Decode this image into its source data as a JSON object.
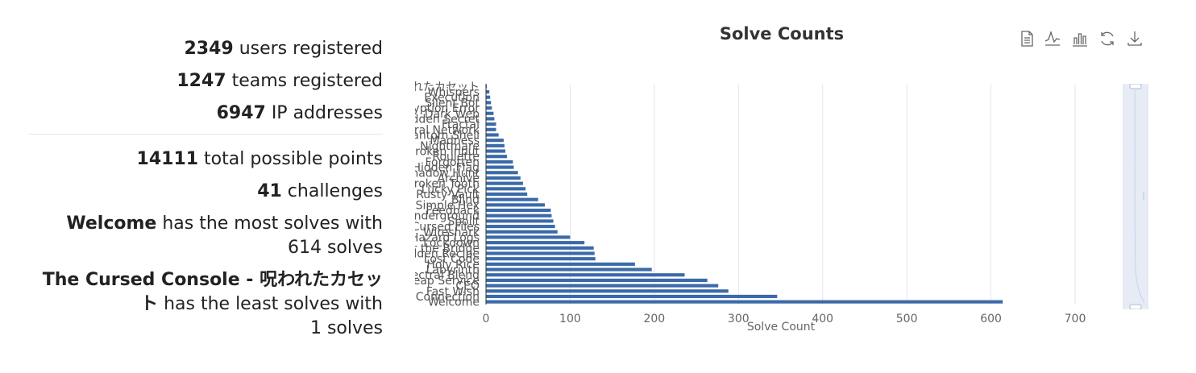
{
  "stats": {
    "users": {
      "value": "2349",
      "label": " users registered"
    },
    "teams": {
      "value": "1247",
      "label": " teams registered"
    },
    "ips": {
      "value": "6947",
      "label": " IP addresses"
    },
    "points": {
      "value": "14111",
      "label": " total possible points"
    },
    "challenges": {
      "value": "41",
      "label": " challenges"
    },
    "most": {
      "name": "Welcome",
      "text": " has the most solves with",
      "count": "614 solves"
    },
    "least": {
      "name": "The Cursed Console - 呪われたカセット",
      "text": " has the least solves with",
      "count": "1 solves"
    }
  },
  "toolbox": {
    "icons": [
      "data-view-icon",
      "line-chart-icon",
      "bar-chart-icon",
      "restore-icon",
      "save-image-icon"
    ]
  },
  "chart_data": {
    "type": "bar",
    "orientation": "horizontal",
    "title": "Solve Counts",
    "xlabel": "Solve Count",
    "xlim": [
      0,
      700
    ],
    "xticks": [
      0,
      100,
      200,
      300,
      400,
      500,
      600,
      700
    ],
    "grid": true,
    "color": "#3b6aa9",
    "categories": [
      "Welcome",
      "Connection",
      "Fast Wish",
      "CEO",
      "Cheap Service",
      "Spectral Blend",
      "Labyrinth",
      "Holy Rice",
      "Lost Code",
      "Golden Recipe",
      "Under the Bridge",
      "Lockdown",
      "Hazard Logs",
      "Wireshark",
      "Cursed Files",
      "Spoilt",
      "Underground",
      "Feedback",
      "Simple Hex",
      "Blind",
      "Rusty Vault",
      "Lucky Pick",
      "Broken Tooth",
      "Archive",
      "Shadow Hunt",
      "Hidden Flag",
      "Forgotten",
      "Roulette",
      "Broken Input",
      "Nightmare",
      "Madness",
      "Phantom Shell",
      "Neural Network",
      "Fractal",
      "Hidden Secret",
      "Dark Web",
      "Encryption Error",
      "Silent Bot",
      "Execution",
      "Whispers",
      "The Cursed Console - 呪われたカセット"
    ],
    "values": [
      614,
      346,
      288,
      276,
      263,
      236,
      197,
      177,
      130,
      129,
      128,
      117,
      100,
      85,
      82,
      80,
      78,
      77,
      70,
      62,
      49,
      47,
      44,
      41,
      38,
      33,
      32,
      25,
      23,
      22,
      21,
      15,
      12,
      12,
      10,
      9,
      7,
      6,
      5,
      4,
      1
    ]
  },
  "zoom": {
    "start": 0,
    "end": 100
  }
}
